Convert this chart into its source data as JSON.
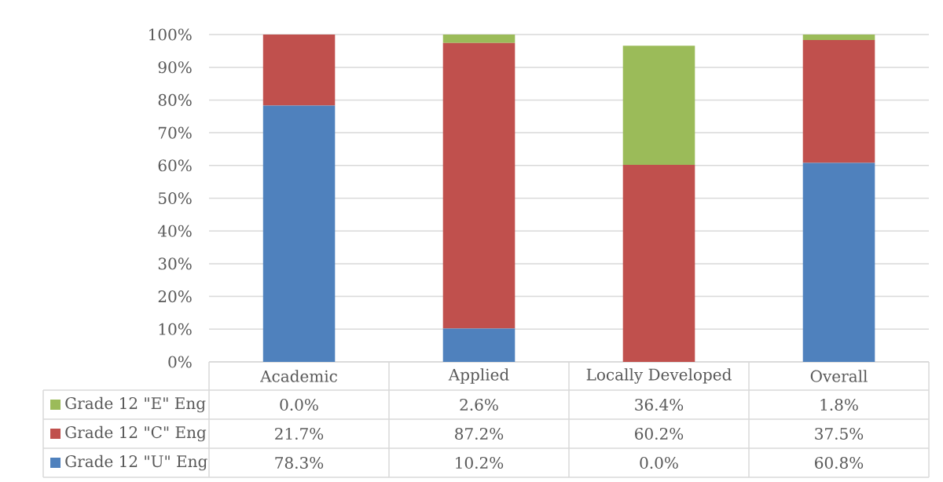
{
  "chart_data": {
    "type": "bar",
    "stacked": true,
    "categories": [
      "Academic",
      "Applied",
      "Locally Developed",
      "Overall"
    ],
    "series": [
      {
        "name": "Grade 12 \"U\" Eng",
        "color": "#4f81bd",
        "values": [
          78.3,
          10.2,
          0.0,
          60.8
        ],
        "value_labels": [
          "78.3%",
          "10.2%",
          "0.0%",
          "60.8%"
        ]
      },
      {
        "name": "Grade 12 \"C\" Eng",
        "color": "#c0504d",
        "values": [
          21.7,
          87.2,
          60.2,
          37.5
        ],
        "value_labels": [
          "21.7%",
          "87.2%",
          "60.2%",
          "37.5%"
        ]
      },
      {
        "name": "Grade 12 \"E\" Eng",
        "color": "#9bbb59",
        "values": [
          0.0,
          2.6,
          36.4,
          1.8
        ],
        "value_labels": [
          "0.0%",
          "2.6%",
          "36.4%",
          "1.8%"
        ]
      }
    ],
    "ylim": [
      0,
      100
    ],
    "yticks": [
      {
        "value": 0,
        "label": "0%"
      },
      {
        "value": 10,
        "label": "10%"
      },
      {
        "value": 20,
        "label": "20%"
      },
      {
        "value": 30,
        "label": "30%"
      },
      {
        "value": 40,
        "label": "40%"
      },
      {
        "value": 50,
        "label": "50%"
      },
      {
        "value": 60,
        "label": "60%"
      },
      {
        "value": 70,
        "label": "70%"
      },
      {
        "value": 80,
        "label": "80%"
      },
      {
        "value": 90,
        "label": "90%"
      },
      {
        "value": 100,
        "label": "100%"
      }
    ],
    "grid": "y",
    "legend": "bottom"
  }
}
